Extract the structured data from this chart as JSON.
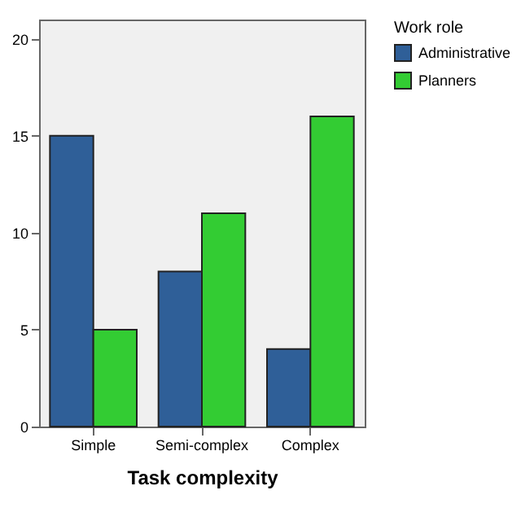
{
  "chart_data": {
    "type": "bar",
    "xlabel": "Task complexity",
    "legend_title": "Work role",
    "categories": [
      "Simple",
      "Semi-complex",
      "Complex"
    ],
    "series": [
      {
        "name": "Administrative",
        "color": "#2f5f98",
        "values": [
          15,
          8,
          4
        ]
      },
      {
        "name": "Planners",
        "color": "#33cc33",
        "values": [
          5,
          11,
          16
        ]
      }
    ],
    "ylim": [
      0,
      21
    ],
    "yticks": [
      0,
      5,
      10,
      15,
      20
    ],
    "grid": false,
    "legend": "top right"
  }
}
